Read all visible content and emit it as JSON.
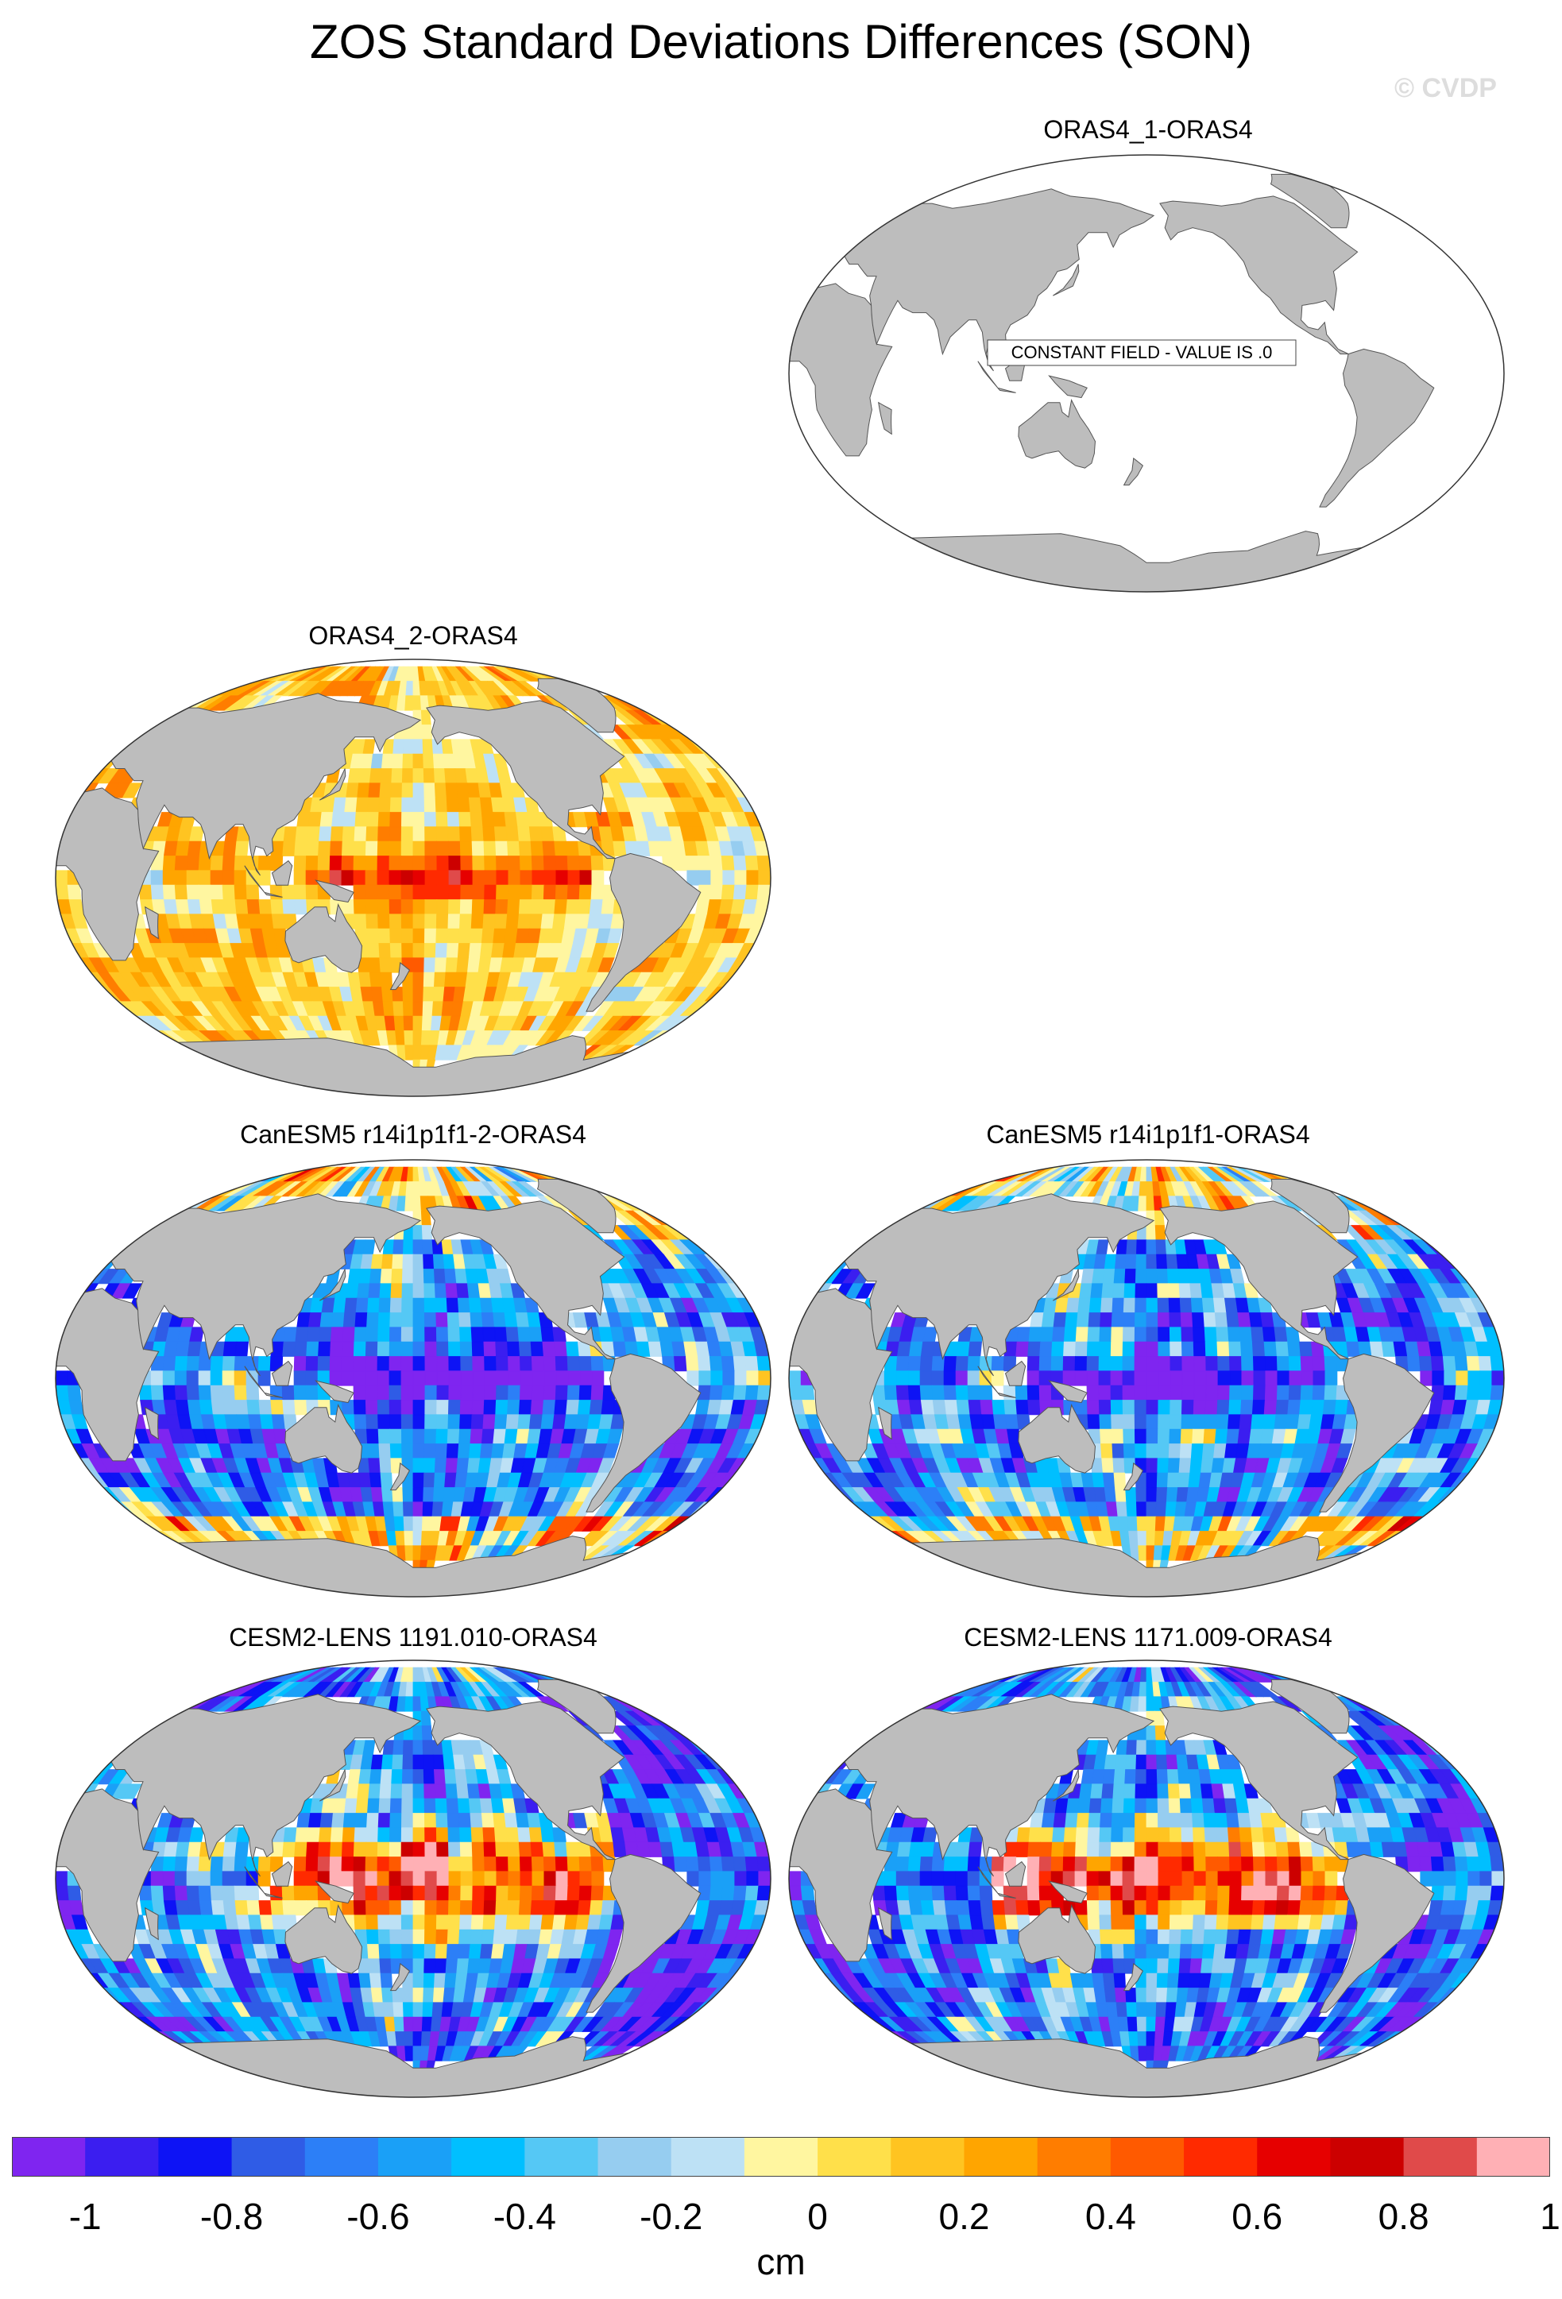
{
  "title": "ZOS Standard Deviations Differences (SON)",
  "credit": "© CVDP",
  "projection": "robinson-pacific-centered",
  "land_color": "#bdbdbd",
  "panels": [
    {
      "label": "ORAS4_1-ORAS4",
      "field": "constant",
      "annotation": "CONSTANT FIELD - VALUE IS .0"
    },
    {
      "label": "ORAS4_2-ORAS4",
      "field": "noisy-positive-tropical-band"
    },
    {
      "label": "CanESM5 r14i1p1f1-2-ORAS4",
      "field": "strong-negative-tropical"
    },
    {
      "label": "CanESM5 r14i1p1f1-ORAS4",
      "field": "strong-negative-tropical"
    },
    {
      "label": "CESM2-LENS 1191.010-ORAS4",
      "field": "positive-tropical-negative-elsewhere"
    },
    {
      "label": "CESM2-LENS 1171.009-ORAS4",
      "field": "positive-tropical-negative-elsewhere"
    }
  ],
  "colorbar": {
    "units": "cm",
    "colors": [
      "#7f25f0",
      "#3b1ef0",
      "#0d13f5",
      "#2f5ce6",
      "#2c7ff7",
      "#1aa0f7",
      "#00bfff",
      "#55c8f5",
      "#96cdf0",
      "#bde1f5",
      "#fff6a0",
      "#ffe04a",
      "#ffc421",
      "#ffa500",
      "#ff7d00",
      "#ff5a00",
      "#ff2a00",
      "#e60000",
      "#cc0000",
      "#e04a4a",
      "#ffb0b5"
    ],
    "tick_labels": [
      "-1",
      "-0.8",
      "-0.6",
      "-0.4",
      "-0.2",
      "0",
      "0.2",
      "0.4",
      "0.6",
      "0.8",
      "1"
    ]
  }
}
